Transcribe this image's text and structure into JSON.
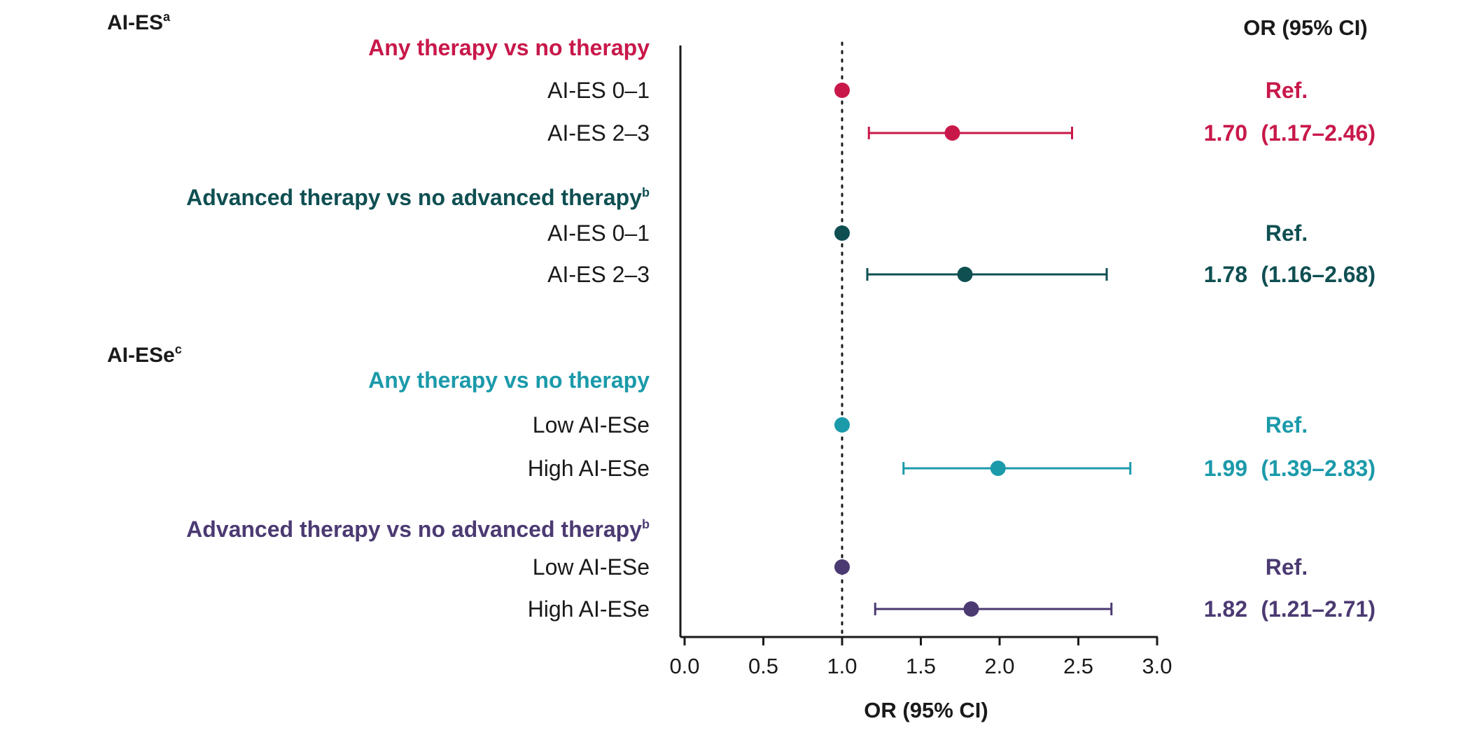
{
  "chart_data": {
    "type": "forest",
    "right_header": "OR (95% CI)",
    "xlabel": "OR (95% CI)",
    "xlim": [
      0,
      3
    ],
    "x_ticks": [
      "0.0",
      "0.5",
      "1.0",
      "1.5",
      "2.0",
      "2.5",
      "3.0"
    ],
    "x_tick_values": [
      0,
      0.5,
      1,
      1.5,
      2,
      2.5,
      3
    ],
    "reference_line": 1.0,
    "sections": [
      {
        "title": "AI-ES",
        "sup": "a",
        "groups": [
          {
            "title": "Any therapy vs no therapy",
            "sup": "",
            "color": "#c8184a",
            "rows": [
              {
                "label": "AI-ES 0–1",
                "or": 1.0,
                "lo": null,
                "hi": null,
                "text_or": "",
                "text_ci": "Ref."
              },
              {
                "label": "AI-ES 2–3",
                "or": 1.7,
                "lo": 1.17,
                "hi": 2.46,
                "text_or": "1.70",
                "text_ci": "(1.17–2.46)"
              }
            ]
          },
          {
            "title": "Advanced therapy vs no advanced therapy",
            "sup": "b",
            "color": "#0f4f52",
            "rows": [
              {
                "label": "AI-ES 0–1",
                "or": 1.0,
                "lo": null,
                "hi": null,
                "text_or": "",
                "text_ci": "Ref."
              },
              {
                "label": "AI-ES 2–3",
                "or": 1.78,
                "lo": 1.16,
                "hi": 2.68,
                "text_or": "1.78",
                "text_ci": "(1.16–2.68)"
              }
            ]
          }
        ]
      },
      {
        "title": "AI-ESe",
        "sup": "c",
        "groups": [
          {
            "title": "Any therapy vs no therapy",
            "sup": "",
            "color": "#1b9aaa",
            "rows": [
              {
                "label": "Low AI-ESe",
                "or": 1.0,
                "lo": null,
                "hi": null,
                "text_or": "",
                "text_ci": "Ref."
              },
              {
                "label": "High AI-ESe",
                "or": 1.99,
                "lo": 1.39,
                "hi": 2.83,
                "text_or": "1.99",
                "text_ci": "(1.39–2.83)"
              }
            ]
          },
          {
            "title": "Advanced therapy vs no advanced therapy",
            "sup": "b",
            "color": "#4b3a72",
            "rows": [
              {
                "label": "Low AI-ESe",
                "or": 1.0,
                "lo": null,
                "hi": null,
                "text_or": "",
                "text_ci": "Ref."
              },
              {
                "label": "High AI-ESe",
                "or": 1.82,
                "lo": 1.21,
                "hi": 2.71,
                "text_or": "1.82",
                "text_ci": "(1.21–2.71)"
              }
            ]
          }
        ]
      }
    ]
  }
}
